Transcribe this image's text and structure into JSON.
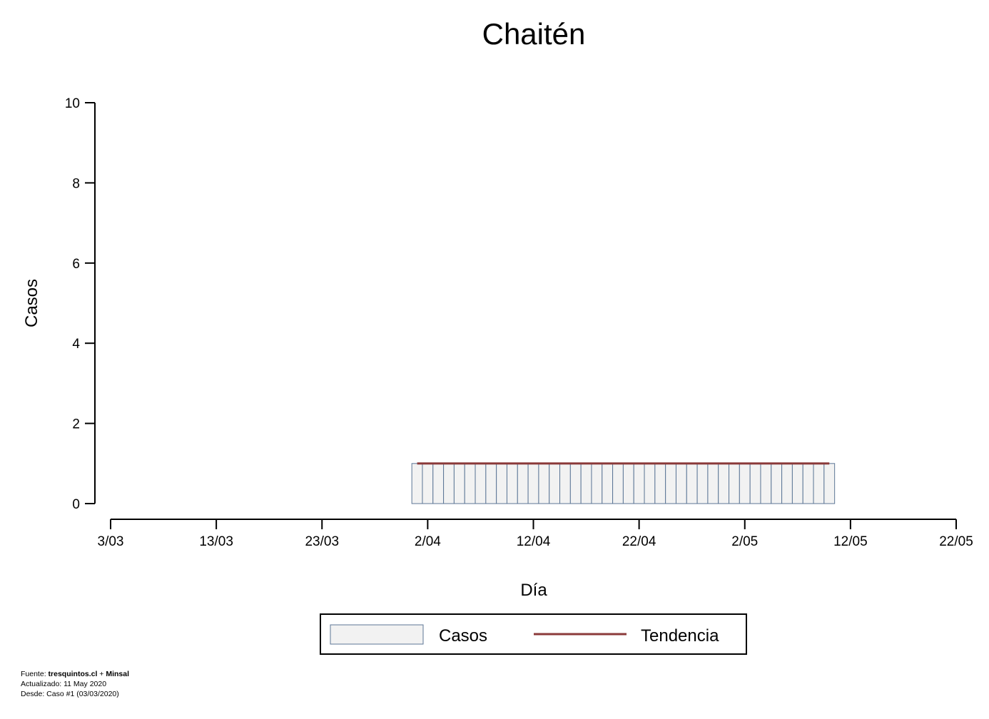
{
  "chart_data": {
    "type": "bar",
    "title": "Chaitén",
    "xlabel": "Día",
    "ylabel": "Casos",
    "x_ticks": [
      "3/03",
      "13/03",
      "23/03",
      "2/04",
      "12/04",
      "22/04",
      "2/05",
      "12/05",
      "22/05"
    ],
    "y_ticks": [
      "0",
      "2",
      "4",
      "6",
      "8",
      "10"
    ],
    "xlim": [
      "2020-03-03",
      "2020-05-22"
    ],
    "ylim": [
      0,
      10
    ],
    "series": [
      {
        "name": "Casos",
        "kind": "bar",
        "start_date": "2020-04-01",
        "end_date": "2020-05-10",
        "value": 1
      },
      {
        "name": "Tendencia",
        "kind": "line",
        "start_date": "2020-04-01",
        "end_date": "2020-05-10",
        "value": 1
      }
    ],
    "legend": {
      "placement": "bottom-center",
      "entries": [
        "Casos",
        "Tendencia"
      ]
    },
    "grid": false
  },
  "colors": {
    "bar_fill": "#f2f2f2",
    "bar_stroke": "#5c7696",
    "trend": "#8b3a3a",
    "axis": "#000000"
  },
  "footer": {
    "source_prefix": "Fuente: ",
    "source_site": "tresquintos.cl",
    "source_sep": " + ",
    "source_org": "Minsal",
    "updated": "Actualizado: 11 May 2020",
    "since": "Desde: Caso #1  (03/03/2020)"
  }
}
